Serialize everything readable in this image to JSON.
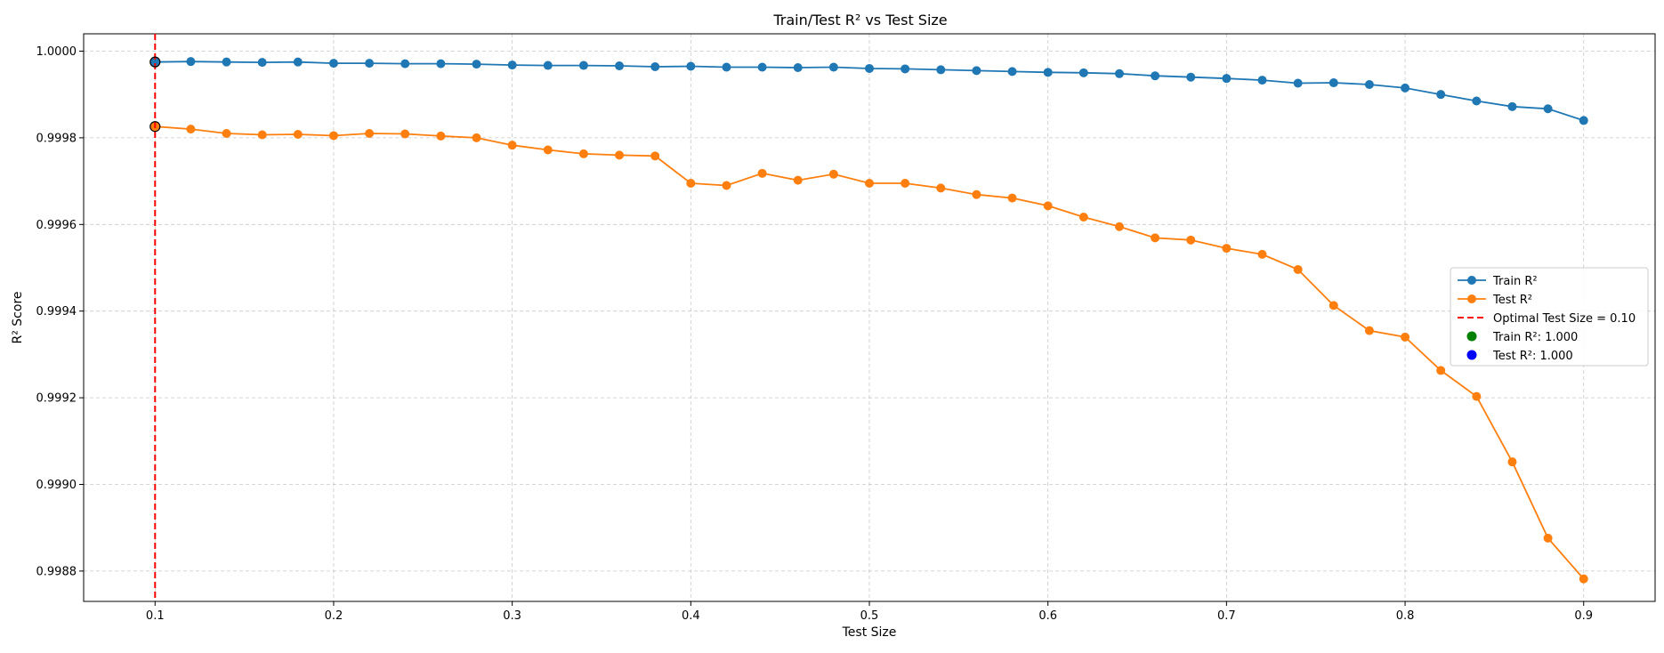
{
  "chart_data": {
    "type": "line",
    "title": "Train/Test R² vs Test Size",
    "xlabel": "Test Size",
    "ylabel": "R² Score",
    "xlim": [
      0.06,
      0.94
    ],
    "ylim": [
      0.99873,
      1.00004
    ],
    "grid": true,
    "legend_position": "right",
    "x_ticks": [
      0.1,
      0.2,
      0.3,
      0.4,
      0.5,
      0.6,
      0.7,
      0.8,
      0.9
    ],
    "x_tick_labels": [
      "0.1",
      "0.2",
      "0.3",
      "0.4",
      "0.5",
      "0.6",
      "0.7",
      "0.8",
      "0.9"
    ],
    "y_ticks": [
      0.9988,
      0.999,
      0.9992,
      0.9994,
      0.9996,
      0.9998,
      1.0
    ],
    "y_tick_labels": [
      "0.9988",
      "0.9990",
      "0.9992",
      "0.9994",
      "0.9996",
      "0.9998",
      "1.0000"
    ],
    "x": [
      0.1,
      0.12,
      0.14,
      0.16,
      0.18,
      0.2,
      0.22,
      0.24,
      0.26,
      0.28,
      0.3,
      0.32,
      0.34,
      0.36,
      0.38,
      0.4,
      0.42,
      0.44,
      0.46,
      0.48,
      0.5,
      0.52,
      0.54,
      0.56,
      0.58,
      0.6,
      0.62,
      0.64,
      0.66,
      0.68,
      0.7,
      0.72,
      0.74,
      0.76,
      0.78,
      0.8,
      0.82,
      0.84,
      0.86,
      0.88,
      0.9
    ],
    "series": [
      {
        "name": "Train R²",
        "color": "#1f77b4",
        "values": [
          0.999975,
          0.999976,
          0.999975,
          0.999974,
          0.999975,
          0.999972,
          0.999972,
          0.999971,
          0.999971,
          0.99997,
          0.999968,
          0.999967,
          0.999967,
          0.999966,
          0.999964,
          0.999965,
          0.999963,
          0.999963,
          0.999962,
          0.999963,
          0.99996,
          0.999959,
          0.999957,
          0.999955,
          0.999953,
          0.999951,
          0.99995,
          0.999948,
          0.999943,
          0.99994,
          0.999937,
          0.999933,
          0.999926,
          0.999927,
          0.999923,
          0.999915,
          0.9999,
          0.999885,
          0.999872,
          0.999867,
          0.99984
        ]
      },
      {
        "name": "Test R²",
        "color": "#ff7f0e",
        "values": [
          0.999826,
          0.99982,
          0.99981,
          0.999807,
          0.999808,
          0.999805,
          0.99981,
          0.999809,
          0.999804,
          0.9998,
          0.999783,
          0.999772,
          0.999763,
          0.99976,
          0.999758,
          0.999695,
          0.99969,
          0.999718,
          0.999702,
          0.999716,
          0.999695,
          0.999695,
          0.999684,
          0.999669,
          0.999661,
          0.999643,
          0.999617,
          0.999595,
          0.999569,
          0.999564,
          0.999545,
          0.999531,
          0.999496,
          0.999413,
          0.999355,
          0.99934,
          0.999263,
          0.999203,
          0.999052,
          0.998876,
          0.998782
        ]
      }
    ],
    "vline": {
      "name": "Optimal Test Size = 0.10",
      "x": 0.1,
      "color": "#ff0000",
      "style": "dashed"
    },
    "highlight_points": [
      {
        "name": "Train R²: 1.000",
        "x": 0.1,
        "y": 0.999975,
        "color": "#008000"
      },
      {
        "name": "Test R²: 1.000",
        "x": 0.1,
        "y": 0.999826,
        "color": "#0000ff"
      }
    ]
  }
}
